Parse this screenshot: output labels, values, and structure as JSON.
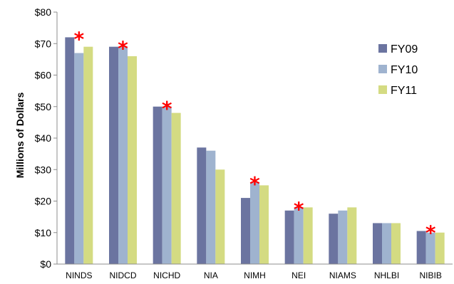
{
  "chart_data": {
    "type": "bar",
    "title": "",
    "xlabel": "",
    "ylabel": "Millions of Dollars",
    "ylim": [
      0,
      80
    ],
    "yticks": [
      "$0",
      "$10",
      "$20",
      "$30",
      "$40",
      "$50",
      "$60",
      "$70",
      "$80"
    ],
    "categories": [
      "NINDS",
      "NIDCD",
      "NICHD",
      "NIA",
      "NIMH",
      "NEI",
      "NIAMS",
      "NHLBI",
      "NIBIB"
    ],
    "series": [
      {
        "name": "FY09",
        "color": "#6b74a0",
        "values": [
          72,
          69,
          50,
          37,
          21,
          17,
          16,
          13,
          10.5
        ]
      },
      {
        "name": "FY10",
        "color": "#9fb3cf",
        "values": [
          67,
          69,
          50,
          36,
          26,
          18,
          17,
          13,
          10
        ]
      },
      {
        "name": "FY11",
        "color": "#d4db82",
        "values": [
          69,
          66,
          48,
          30,
          25,
          18,
          18,
          13,
          10
        ]
      }
    ],
    "annotations": {
      "symbol": "*",
      "categories": [
        "NINDS",
        "NIDCD",
        "NICHD",
        "NIMH",
        "NEI",
        "NIBIB"
      ]
    },
    "grid": false,
    "legend": "right"
  }
}
